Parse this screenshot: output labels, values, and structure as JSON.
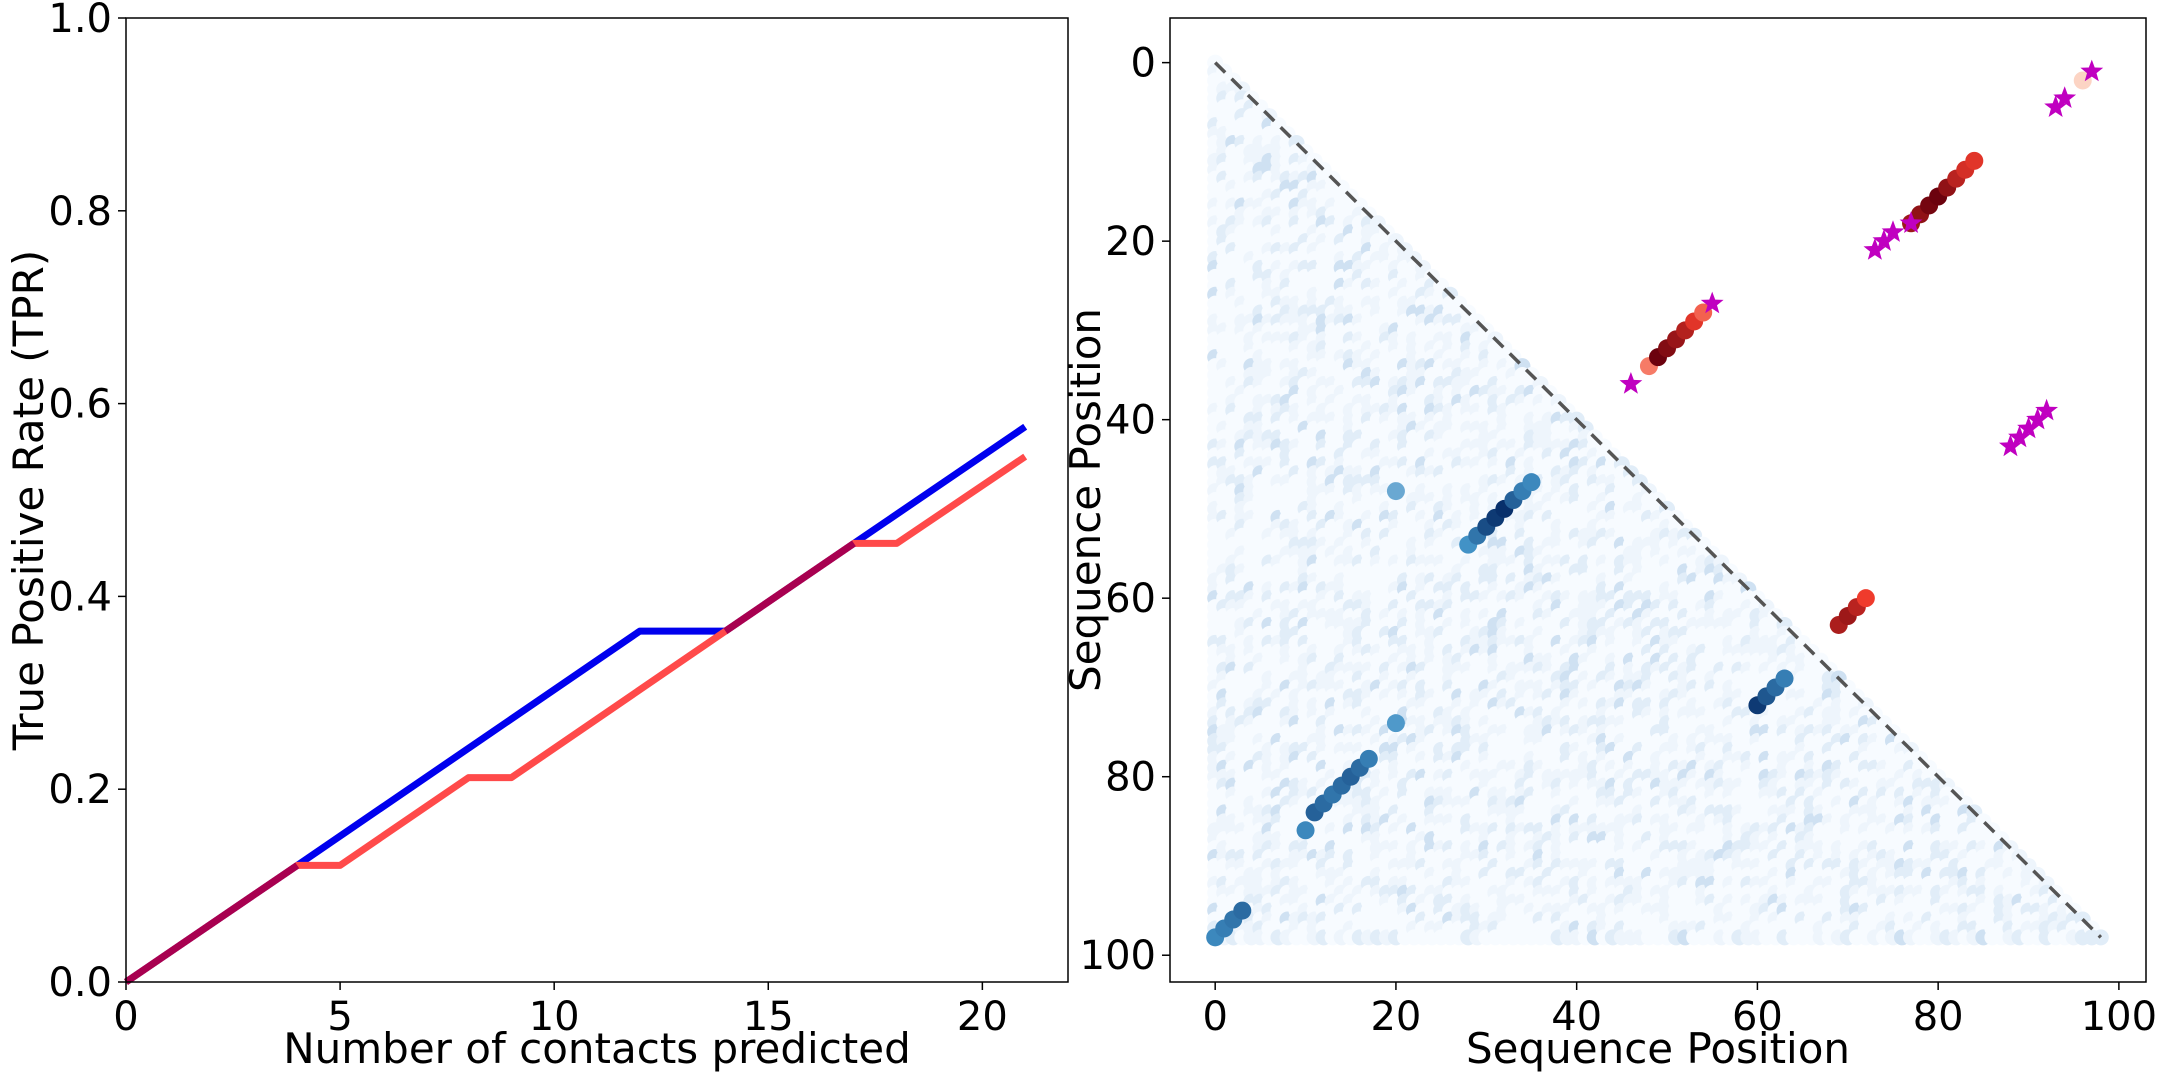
{
  "chart_data": [
    {
      "type": "line",
      "xlabel": "Number of contacts predicted",
      "ylabel": "True Positive Rate (TPR)",
      "xlim": [
        0,
        22
      ],
      "ylim": [
        0,
        1.0
      ],
      "xticks": [
        0,
        5,
        10,
        15,
        20
      ],
      "yticks": [
        0.0,
        0.2,
        0.4,
        0.6,
        0.8,
        1.0
      ],
      "xtick_labels": [
        "0",
        "5",
        "10",
        "15",
        "20"
      ],
      "ytick_labels": [
        "0.0",
        "0.2",
        "0.4",
        "0.6",
        "0.8",
        "1.0"
      ],
      "grid": false,
      "series": [
        {
          "color": "#0000ee",
          "x": [
            0,
            4,
            12,
            14,
            17,
            21
          ],
          "y": [
            0.0,
            0.121,
            0.364,
            0.364,
            0.455,
            0.576
          ]
        },
        {
          "color": "#ff4a4a",
          "x": [
            0,
            4,
            5,
            8,
            9,
            14,
            17,
            18,
            21
          ],
          "y": [
            0.0,
            0.121,
            0.121,
            0.212,
            0.212,
            0.364,
            0.455,
            0.455,
            0.545
          ]
        }
      ],
      "overlap_color": "#a80050"
    },
    {
      "type": "scatter",
      "xlabel": "Sequence Position",
      "ylabel": "Sequence Position",
      "xlim": [
        -5,
        103
      ],
      "ylim": [
        103,
        -5
      ],
      "xticks": [
        0,
        20,
        40,
        60,
        80,
        100
      ],
      "yticks": [
        0,
        20,
        40,
        60,
        80,
        100
      ],
      "xtick_labels": [
        "0",
        "20",
        "40",
        "60",
        "80",
        "100"
      ],
      "ytick_labels": [
        "0",
        "20",
        "40",
        "60",
        "80",
        "100"
      ],
      "grid": false,
      "diagonal_line": {
        "from": [
          0,
          0
        ],
        "to": [
          98,
          98
        ],
        "color": "#555555",
        "style": "dashed"
      },
      "background_cmap": "Blues (faint, lower triangle)",
      "series": [
        {
          "name": "predicted contacts (blue, lower triangle)",
          "color": "#2171b5",
          "points": [
            [
              0,
              98
            ],
            [
              1,
              97
            ],
            [
              2,
              96
            ],
            [
              3,
              95
            ],
            [
              10,
              86
            ],
            [
              11,
              84
            ],
            [
              12,
              83
            ],
            [
              13,
              82
            ],
            [
              14,
              81
            ],
            [
              15,
              80
            ],
            [
              16,
              79
            ],
            [
              17,
              78
            ],
            [
              20,
              74
            ],
            [
              20,
              48
            ],
            [
              28,
              54
            ],
            [
              29,
              53
            ],
            [
              30,
              52
            ],
            [
              31,
              51
            ],
            [
              32,
              50
            ],
            [
              33,
              49
            ],
            [
              34,
              48
            ],
            [
              35,
              47
            ],
            [
              60,
              72
            ],
            [
              61,
              71
            ],
            [
              62,
              70
            ],
            [
              63,
              69
            ]
          ],
          "shades": [
            0.55,
            0.6,
            0.65,
            0.7,
            0.55,
            0.75,
            0.7,
            0.65,
            0.7,
            0.75,
            0.7,
            0.6,
            0.45,
            0.35,
            0.5,
            0.65,
            0.85,
            0.95,
            1.0,
            0.75,
            0.6,
            0.55,
            0.95,
            0.8,
            0.7,
            0.6
          ]
        },
        {
          "name": "true contacts (red, upper triangle)",
          "color": "#cb181d",
          "points": [
            [
              48,
              34
            ],
            [
              49,
              33
            ],
            [
              50,
              32
            ],
            [
              51,
              31
            ],
            [
              52,
              30
            ],
            [
              53,
              29
            ],
            [
              54,
              28
            ],
            [
              77,
              18
            ],
            [
              78,
              17
            ],
            [
              79,
              16
            ],
            [
              80,
              15
            ],
            [
              81,
              14
            ],
            [
              82,
              13
            ],
            [
              83,
              12
            ],
            [
              84,
              11
            ],
            [
              69,
              63
            ],
            [
              70,
              62
            ],
            [
              71,
              61
            ],
            [
              72,
              60
            ]
          ],
          "shades": [
            0.25,
            0.98,
            0.9,
            0.82,
            0.72,
            0.55,
            0.35,
            0.8,
            0.85,
            0.95,
            0.98,
            0.85,
            0.7,
            0.6,
            0.55,
            0.75,
            0.8,
            0.7,
            0.5
          ]
        },
        {
          "name": "stars (magenta, upper triangle)",
          "color": "#c000c0",
          "points": [
            [
              46,
              36
            ],
            [
              55,
              27
            ],
            [
              73,
              21
            ],
            [
              74,
              20
            ],
            [
              75,
              19
            ],
            [
              77,
              18
            ],
            [
              93,
              5
            ],
            [
              94,
              4
            ],
            [
              97,
              1
            ],
            [
              88,
              43
            ],
            [
              89,
              42
            ],
            [
              90,
              41
            ],
            [
              91,
              40
            ],
            [
              92,
              39
            ]
          ]
        },
        {
          "name": "faint pink points",
          "color": "#fcd4c4",
          "points": [
            [
              96,
              2
            ]
          ]
        }
      ]
    }
  ]
}
